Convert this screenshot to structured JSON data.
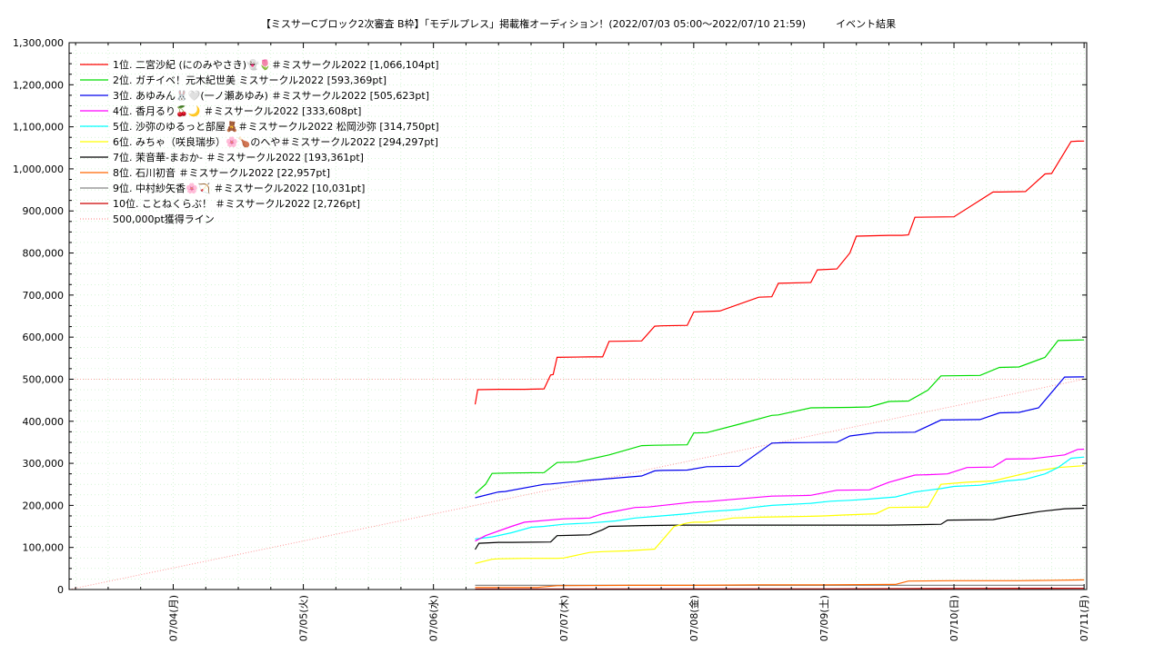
{
  "chart_data": {
    "type": "line",
    "title": "【ミスサーCブロック2次審査 B枠】「モデルプレス」掲載権オーディション！(2022/07/03 05:00〜2022/07/10 21:59)　　　イベント結果",
    "x_tick_labels": [
      "07/04(月)",
      "07/05(火)",
      "07/06(水)",
      "07/07(木)",
      "07/08(金)",
      "07/09(土)",
      "07/10(日)",
      "07/11(月)"
    ],
    "x_tick_days": [
      1,
      2,
      3,
      4,
      5,
      6,
      7,
      8
    ],
    "xlim": [
      0.2,
      8.02
    ],
    "ylim": [
      0,
      1300000
    ],
    "y_ticks": [
      0,
      100000,
      200000,
      300000,
      400000,
      500000,
      600000,
      700000,
      800000,
      900000,
      1000000,
      1100000,
      1200000,
      1300000
    ],
    "y_tick_labels": [
      "0",
      "100,000",
      "200,000",
      "300,000",
      "400,000",
      "500,000",
      "600,000",
      "700,000",
      "800,000",
      "900,000",
      "1,000,000",
      "1,100,000",
      "1,200,000",
      "1,300,000"
    ],
    "grid": true,
    "legend_position": "top-left",
    "reference_line": {
      "name": "500,000pt獲得ライン",
      "color": "#ff9999",
      "x": [
        0.2,
        8.0
      ],
      "y": [
        0,
        500000
      ]
    },
    "reference_hline": {
      "y": 500000,
      "color": "#ff9999"
    },
    "series": [
      {
        "name": "1位. 二宮沙紀 (にのみやさき)👻🌷＃ミスサークル2022 [1,066,104pt]",
        "color": "#ff0000",
        "x": [
          3.32,
          3.34,
          3.5,
          3.7,
          3.85,
          3.9,
          3.92,
          3.95,
          4.2,
          4.3,
          4.35,
          4.6,
          4.7,
          4.75,
          4.95,
          5,
          5.1,
          5.2,
          5.5,
          5.6,
          5.65,
          5.9,
          5.95,
          6.1,
          6.2,
          6.25,
          6.5,
          6.55,
          6.6,
          6.65,
          6.7,
          7.0,
          7.3,
          7.35,
          7.55,
          7.7,
          7.75,
          7.9,
          7.95,
          8.0
        ],
        "y": [
          440000,
          475000,
          476000,
          476000,
          477000,
          510000,
          511000,
          552000,
          553000,
          553000,
          590000,
          591000,
          626000,
          627000,
          628000,
          660000,
          661000,
          662000,
          695000,
          696000,
          728000,
          730000,
          760000,
          762000,
          800000,
          840000,
          842000,
          842000,
          842000,
          843000,
          885000,
          886000,
          945000,
          945000,
          946000,
          988000,
          989000,
          1065000,
          1066000,
          1066104
        ]
      },
      {
        "name": "2位. ガチイベ！元木紀世美 ミスサークル2022 [593,369pt]",
        "color": "#00dd00",
        "x": [
          3.32,
          3.4,
          3.45,
          3.6,
          3.85,
          3.95,
          4.1,
          4.35,
          4.6,
          4.7,
          4.95,
          5,
          5.1,
          5.35,
          5.6,
          5.65,
          5.9,
          6.2,
          6.35,
          6.5,
          6.65,
          6.8,
          6.9,
          7.2,
          7.35,
          7.5,
          7.7,
          7.8,
          7.95,
          8.0
        ],
        "y": [
          228000,
          250000,
          276000,
          277000,
          278000,
          302000,
          303000,
          320000,
          342000,
          343000,
          344000,
          372000,
          373000,
          393000,
          414000,
          415000,
          432000,
          433000,
          434000,
          447000,
          448000,
          474000,
          508000,
          509000,
          528000,
          529000,
          552000,
          592000,
          593000,
          593369
        ]
      },
      {
        "name": "3位. あゆみん🐰🤍(一ノ瀬あゆみ) ＃ミスサークル2022 [505,623pt]",
        "color": "#0000ee",
        "x": [
          3.32,
          3.5,
          3.55,
          3.85,
          3.9,
          4.2,
          4.25,
          4.6,
          4.7,
          4.75,
          4.95,
          5.1,
          5.35,
          5.6,
          5.7,
          6.1,
          6.2,
          6.4,
          6.7,
          6.9,
          7.2,
          7.35,
          7.5,
          7.65,
          7.85,
          8.0
        ],
        "y": [
          218000,
          232000,
          233000,
          250000,
          251000,
          260000,
          261000,
          270000,
          282000,
          283000,
          284000,
          292000,
          293000,
          348000,
          349000,
          350000,
          365000,
          373000,
          374000,
          403000,
          404000,
          420000,
          421000,
          432000,
          505000,
          505623
        ]
      },
      {
        "name": "4位. 香月るり🍒🌙 ＃ミスサークル2022 [333,608pt]",
        "color": "#ff00ff",
        "x": [
          3.32,
          3.4,
          3.6,
          3.7,
          4.0,
          4.2,
          4.3,
          4.55,
          4.65,
          5.0,
          5.1,
          5.6,
          5.8,
          5.9,
          6.1,
          6.35,
          6.5,
          6.7,
          6.8,
          6.95,
          7.1,
          7.3,
          7.4,
          7.6,
          7.85,
          7.95,
          8.0
        ],
        "y": [
          115000,
          128000,
          150000,
          160000,
          168000,
          170000,
          180000,
          195000,
          196000,
          208000,
          209000,
          222000,
          223000,
          224000,
          236000,
          237000,
          255000,
          272000,
          273000,
          275000,
          290000,
          291000,
          310000,
          311000,
          320000,
          333000,
          333608
        ]
      },
      {
        "name": "5位. 沙弥のゆるっと部屋🧸＃ミスサークル2022 松岡沙弥 [314,750pt]",
        "color": "#00ffff",
        "x": [
          3.32,
          3.45,
          3.6,
          3.75,
          3.85,
          4.0,
          4.2,
          4.4,
          4.55,
          4.75,
          4.95,
          5.1,
          5.35,
          5.45,
          5.6,
          5.9,
          6.05,
          6.2,
          6.35,
          6.55,
          6.7,
          6.9,
          7.0,
          7.2,
          7.4,
          7.55,
          7.7,
          7.8,
          7.9,
          8.0
        ],
        "y": [
          120000,
          125000,
          135000,
          148000,
          150000,
          155000,
          158000,
          163000,
          170000,
          175000,
          180000,
          185000,
          190000,
          195000,
          200000,
          205000,
          210000,
          212000,
          215000,
          220000,
          232000,
          240000,
          245000,
          248000,
          258000,
          262000,
          275000,
          290000,
          312000,
          314750
        ]
      },
      {
        "name": "6位. みちゃ（咲良瑞歩）🌸🍗のへや＃ミスサークル2022 [294,297pt]",
        "color": "#ffff00",
        "x": [
          3.32,
          3.45,
          3.5,
          3.7,
          3.95,
          4.0,
          4.2,
          4.3,
          4.5,
          4.65,
          4.7,
          4.85,
          4.95,
          5.0,
          5.1,
          5.3,
          5.5,
          5.7,
          5.9,
          6.0,
          6.15,
          6.4,
          6.5,
          6.8,
          6.9,
          7.1,
          7.3,
          7.6,
          7.8,
          8.0
        ],
        "y": [
          62000,
          72000,
          73000,
          74000,
          74000,
          75000,
          88000,
          90000,
          92000,
          95000,
          96000,
          150000,
          158000,
          160000,
          160000,
          170000,
          172000,
          173000,
          174000,
          175000,
          177000,
          180000,
          195000,
          196000,
          250000,
          255000,
          258000,
          280000,
          290000,
          294297
        ]
      },
      {
        "name": "7位. 茉音華-まおか- ＃ミスサークル2022 [193,361pt]",
        "color": "#000000",
        "x": [
          3.32,
          3.35,
          3.5,
          3.6,
          3.9,
          3.95,
          4.2,
          4.3,
          4.35,
          4.6,
          4.9,
          4.95,
          5.2,
          5.5,
          6.0,
          6.5,
          6.9,
          6.95,
          7.3,
          7.45,
          7.65,
          7.85,
          8.0
        ],
        "y": [
          95000,
          110000,
          112000,
          112000,
          113000,
          128000,
          130000,
          142000,
          150000,
          152000,
          153000,
          153000,
          153000,
          153000,
          153000,
          153000,
          155000,
          165000,
          166000,
          175000,
          185000,
          192000,
          193361
        ]
      },
      {
        "name": "8位. 石川初音 ＃ミスサークル2022 [22,957pt]",
        "color": "#ff6600",
        "x": [
          3.32,
          3.8,
          3.95,
          4.5,
          5.0,
          5.5,
          6.0,
          6.55,
          6.65,
          7.0,
          7.5,
          7.8,
          8.0
        ],
        "y": [
          5000,
          5000,
          9000,
          10000,
          10000,
          11000,
          11000,
          12000,
          20000,
          21000,
          21000,
          22000,
          22957
        ]
      },
      {
        "name": "9位. 中村紗矢香🌸🏹 ＃ミスサークル2022 [10,031pt]",
        "color": "#888888",
        "x": [
          3.32,
          4.0,
          5.0,
          6.0,
          7.0,
          8.0
        ],
        "y": [
          10000,
          10000,
          10000,
          10000,
          10000,
          10031
        ]
      },
      {
        "name": "10位. ことねくらぶ！ ＃ミスサークル2022 [2,726pt]",
        "color": "#cc0000",
        "x": [
          3.32,
          4.0,
          5.0,
          6.0,
          6.6,
          7.0,
          8.0
        ],
        "y": [
          1000,
          1000,
          1500,
          1500,
          2000,
          2500,
          2726
        ]
      }
    ]
  }
}
